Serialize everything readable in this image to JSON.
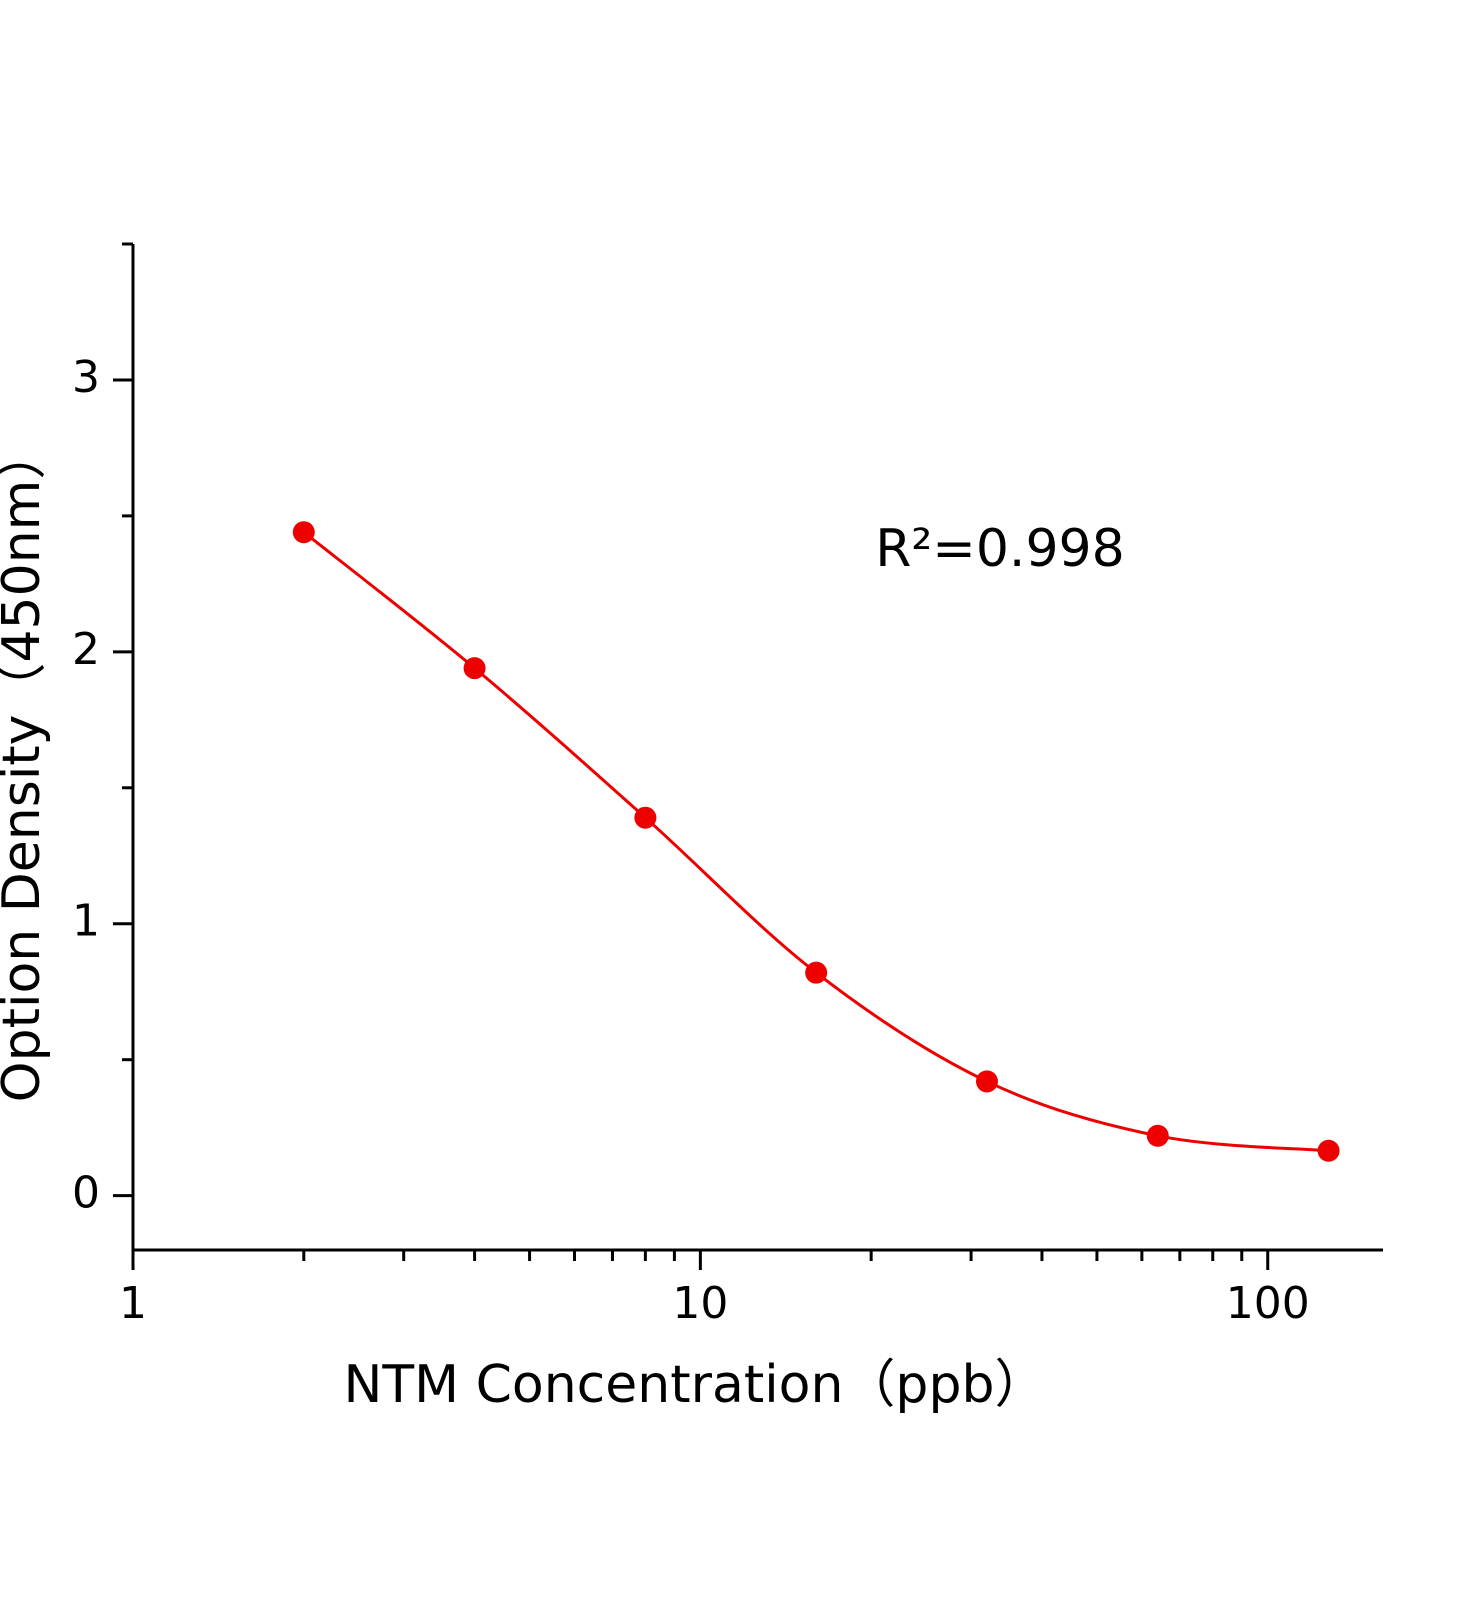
{
  "chart_data": {
    "type": "scatter",
    "x_label": "NTM Concentration（ppb）",
    "y_label": "Option Density（450nm）",
    "annotation": "R²=0.998",
    "series": [
      {
        "color": "#ee0000",
        "x": [
          2,
          4,
          8,
          16,
          32,
          64,
          128
        ],
        "values": [
          2.44,
          1.94,
          1.39,
          0.82,
          0.42,
          0.22,
          0.165
        ]
      }
    ],
    "xscale": "log",
    "xlim": [
      1,
      159
    ],
    "xticks": [
      1,
      10,
      100
    ],
    "xminorticks": [
      2,
      3,
      4,
      5,
      6,
      7,
      8,
      9,
      20,
      30,
      40,
      50,
      60,
      70,
      80,
      90
    ],
    "ylim": [
      -0.2,
      3.5
    ],
    "yticks": [
      0,
      1,
      2,
      3
    ],
    "yminorticks": [
      0.5,
      1.5,
      2.5,
      3.5
    ],
    "fit_line": true
  }
}
